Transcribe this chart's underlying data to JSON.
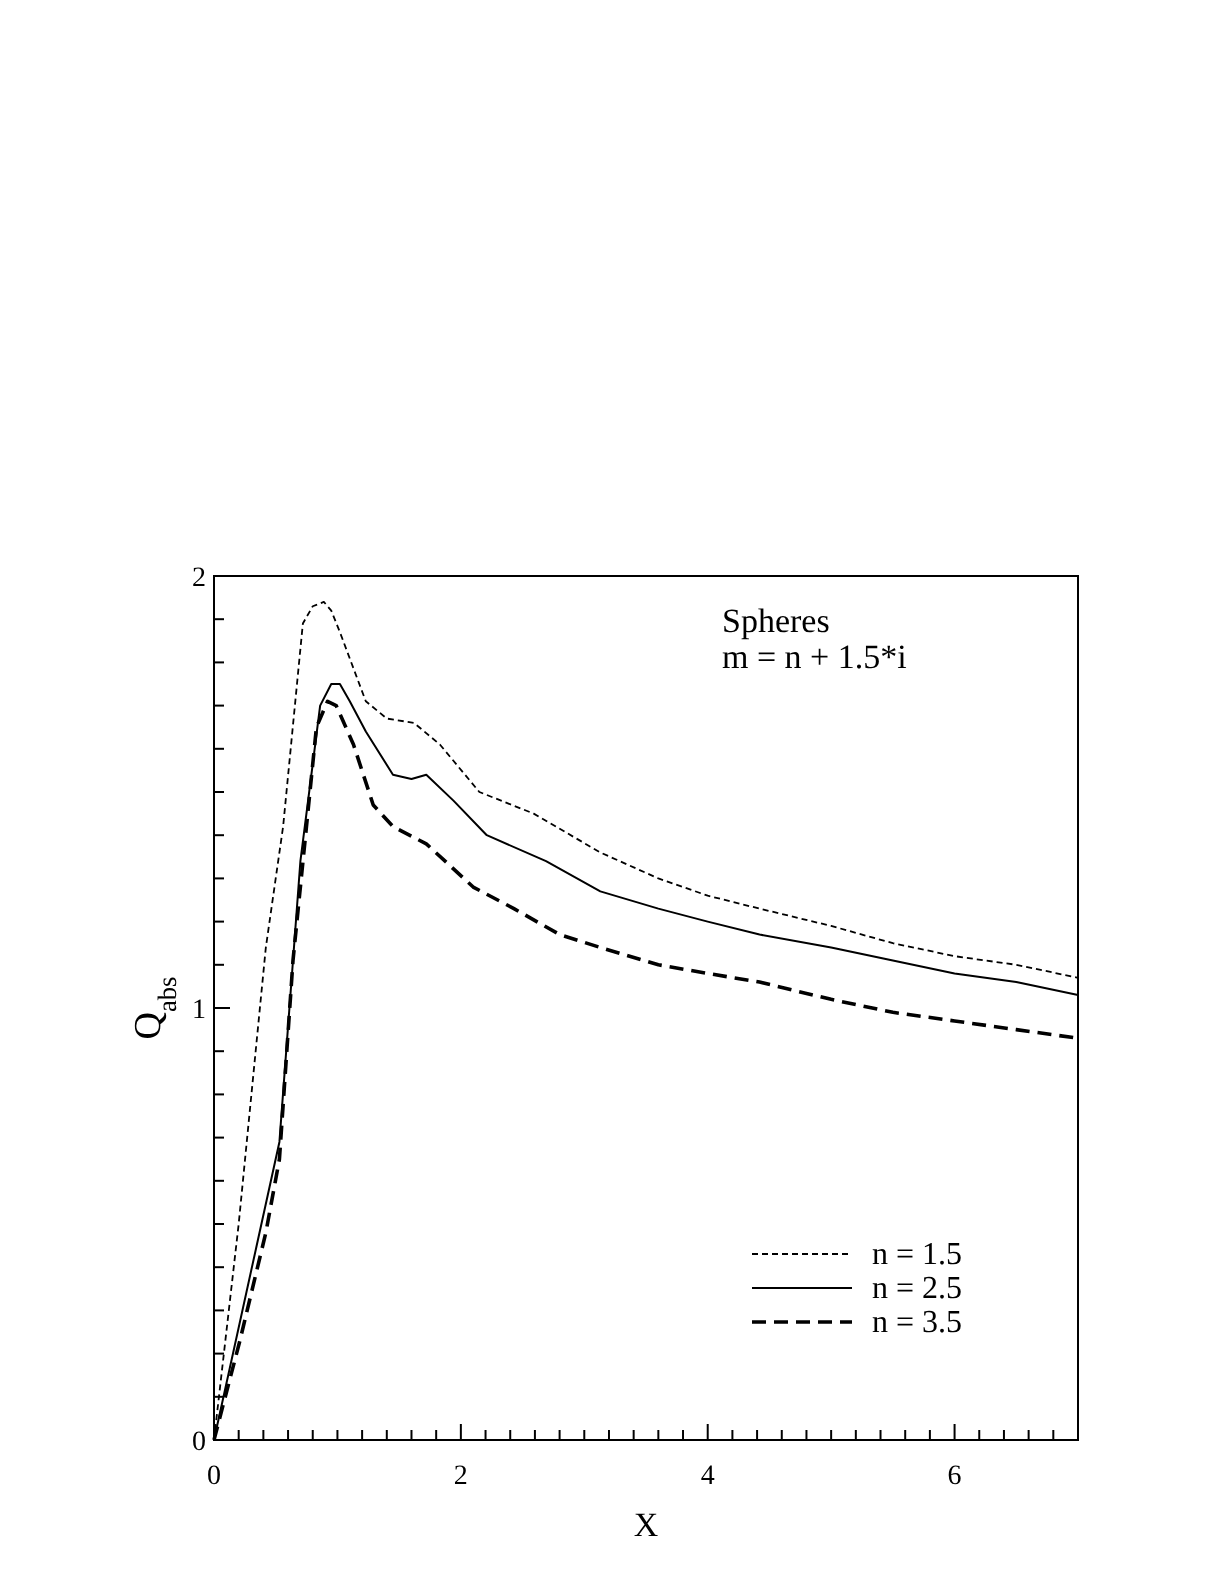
{
  "chart_data": {
    "type": "line",
    "xlabel": "X",
    "ylabel": "Q$_{abs}$",
    "annotations": [
      "Spheres",
      "m = n + 1.5*i"
    ],
    "legend": "bottom right",
    "xlim": [
      0,
      7
    ],
    "ylim": [
      0,
      2
    ],
    "xticks": [
      0,
      {
        "value": 0.2,
        "label": null
      },
      {
        "value": 0.4,
        "label": null
      },
      {
        "value": 0.6,
        "label": null
      },
      {
        "value": 0.8,
        "label": null
      },
      {
        "value": 1,
        "label": null
      },
      {
        "value": 1.2,
        "label": null
      },
      {
        "value": 1.4,
        "label": null
      },
      {
        "value": 1.6,
        "label": null
      },
      {
        "value": 1.8,
        "label": null
      },
      2,
      {
        "value": 2.2,
        "label": null
      },
      {
        "value": 2.4,
        "label": null
      },
      {
        "value": 2.6,
        "label": null
      },
      {
        "value": 2.8,
        "label": null
      },
      {
        "value": 3,
        "label": null
      },
      {
        "value": 3.2,
        "label": null
      },
      {
        "value": 3.4,
        "label": null
      },
      {
        "value": 3.6,
        "label": null
      },
      {
        "value": 3.8,
        "label": null
      },
      4,
      {
        "value": 4.2,
        "label": null
      },
      {
        "value": 4.4,
        "label": null
      },
      {
        "value": 4.6,
        "label": null
      },
      {
        "value": 4.8,
        "label": null
      },
      {
        "value": 5,
        "label": null
      },
      {
        "value": 5.2,
        "label": null
      },
      {
        "value": 5.4,
        "label": null
      },
      {
        "value": 5.6,
        "label": null
      },
      {
        "value": 5.8,
        "label": null
      },
      6,
      {
        "value": 6.2,
        "label": null
      },
      {
        "value": 6.4,
        "label": null
      },
      {
        "value": 6.6,
        "label": null
      },
      {
        "value": 6.8,
        "label": null
      },
      {
        "value": 7,
        "label": null
      }
    ],
    "yticks": [
      0,
      {
        "value": 0.1,
        "label": null
      },
      {
        "value": 0.2,
        "label": null
      },
      {
        "value": 0.3,
        "label": null
      },
      {
        "value": 0.4,
        "label": null
      },
      {
        "value": 0.5,
        "label": null
      },
      {
        "value": 0.6,
        "label": null
      },
      {
        "value": 0.7,
        "label": null
      },
      {
        "value": 0.8,
        "label": null
      },
      {
        "value": 0.9,
        "label": null
      },
      1,
      {
        "value": 1.1,
        "label": null
      },
      {
        "value": 1.2,
        "label": null
      },
      {
        "value": 1.3,
        "label": null
      },
      {
        "value": 1.4,
        "label": null
      },
      {
        "value": 1.5,
        "label": null
      },
      {
        "value": 1.6,
        "label": null
      },
      {
        "value": 1.7,
        "label": null
      },
      {
        "value": 1.8,
        "label": null
      },
      {
        "value": 1.9,
        "label": null
      },
      2
    ],
    "series": [
      {
        "name": "n = 1.5",
        "color": "#000000",
        "line_style": "dotted",
        "x": [
          0,
          0.2,
          0.42,
          0.56,
          0.72,
          0.8,
          0.89,
          0.95,
          1.02,
          1.23,
          1.4,
          1.62,
          1.83,
          2.15,
          2.59,
          3.13,
          3.6,
          4,
          4.42,
          5,
          5.5,
          6,
          6.5,
          7
        ],
        "values": [
          0,
          0.5,
          1.14,
          1.42,
          1.89,
          1.93,
          1.94,
          1.92,
          1.87,
          1.71,
          1.67,
          1.66,
          1.61,
          1.5,
          1.45,
          1.36,
          1.3,
          1.26,
          1.23,
          1.19,
          1.15,
          1.12,
          1.1,
          1.07
        ]
      },
      {
        "name": "n = 2.5",
        "color": "#000000",
        "line_style": "solid",
        "x": [
          0,
          0.53,
          0.64,
          0.7,
          0.86,
          0.95,
          1.02,
          1.1,
          1.23,
          1.45,
          1.6,
          1.72,
          1.94,
          2.21,
          2.69,
          3.13,
          3.6,
          4,
          4.42,
          5,
          5.5,
          6,
          6.5,
          7
        ],
        "values": [
          0,
          0.69,
          1.11,
          1.34,
          1.7,
          1.75,
          1.75,
          1.71,
          1.64,
          1.54,
          1.53,
          1.54,
          1.48,
          1.4,
          1.34,
          1.27,
          1.23,
          1.2,
          1.17,
          1.14,
          1.11,
          1.08,
          1.06,
          1.03
        ]
      },
      {
        "name": "n = 3.5",
        "color": "#000000",
        "line_style": "dashed",
        "x": [
          0,
          0.21,
          0.42,
          0.53,
          0.64,
          0.83,
          0.92,
          0.99,
          1.13,
          1.29,
          1.45,
          1.72,
          2.1,
          2.43,
          2.8,
          3.13,
          3.6,
          4,
          4.42,
          5,
          5.5,
          6,
          6.5,
          7
        ],
        "values": [
          0,
          0.23,
          0.48,
          0.65,
          1.11,
          1.65,
          1.71,
          1.7,
          1.61,
          1.47,
          1.42,
          1.38,
          1.28,
          1.23,
          1.17,
          1.14,
          1.1,
          1.08,
          1.06,
          1.02,
          0.99,
          0.97,
          0.95,
          0.93
        ]
      }
    ]
  }
}
